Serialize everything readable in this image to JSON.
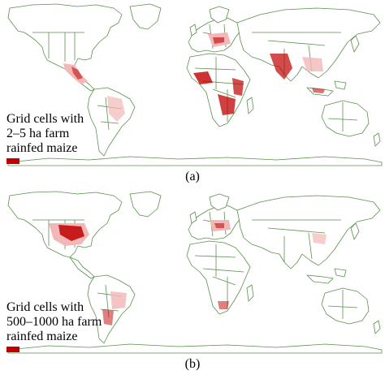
{
  "colors": {
    "border": "#5b8f4e",
    "land": "#ffffff",
    "highlight": "#c00000",
    "highlight_light": "#f2b8b8"
  },
  "panels": [
    {
      "label": "(a)",
      "legend": {
        "line1": "Grid cells with",
        "line2": "2–5 ha farm",
        "line3": "rainfed maize"
      }
    },
    {
      "label": "(b)",
      "legend": {
        "line1": "Grid cells with",
        "line2": "500–1000 ha farm",
        "line3": "rainfed maize"
      }
    }
  ]
}
